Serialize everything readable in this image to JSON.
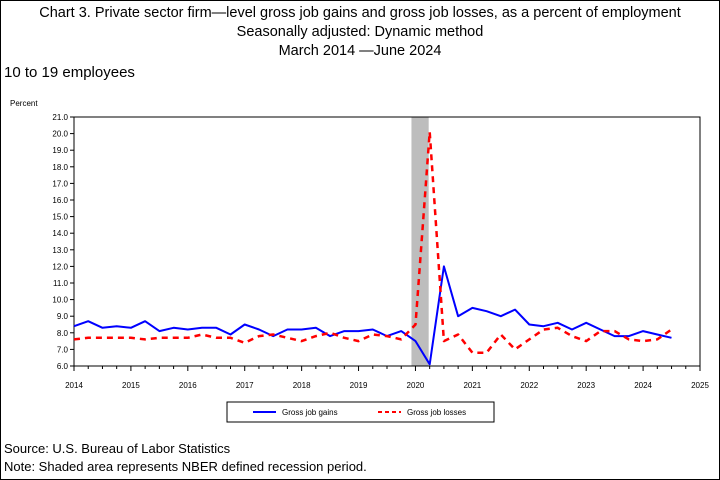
{
  "chart_title": {
    "line1": "Chart 3. Private sector firm—level gross job gains and gross job losses, as a percent of employment",
    "line2": "Seasonally adjusted: Dynamic method",
    "line3": "March 2014  —June 2024"
  },
  "subtitle": "10 to 19 employees",
  "footer": {
    "source": "Source: U.S. Bureau of Labor Statistics",
    "note": "Note: Shaded area represents NBER defined recession period."
  },
  "colors": {
    "gains": "#0000ff",
    "losses": "#ff0000",
    "recession": "#bdbdbd"
  },
  "chart_data": {
    "type": "line",
    "ylabel": "Percent",
    "xlabel": "",
    "xlim": [
      2014,
      2025
    ],
    "ylim": [
      6.0,
      21.0
    ],
    "y_ticks": [
      "6.0",
      "7.0",
      "8.0",
      "9.0",
      "10.0",
      "11.0",
      "12.0",
      "13.0",
      "14.0",
      "15.0",
      "16.0",
      "17.0",
      "18.0",
      "19.0",
      "20.0",
      "21.0"
    ],
    "x_ticks": [
      "2014",
      "2015",
      "2016",
      "2017",
      "2018",
      "2019",
      "2020",
      "2021",
      "2022",
      "2023",
      "2024",
      "2025"
    ],
    "grid": false,
    "legend_position": "bottom",
    "recession": [
      2020.0,
      2020.25
    ],
    "series": [
      {
        "name": "Gross job gains",
        "style": "solid",
        "points": [
          [
            2014.0,
            8.4
          ],
          [
            2014.25,
            8.7
          ],
          [
            2014.5,
            8.3
          ],
          [
            2014.75,
            8.4
          ],
          [
            2015.0,
            8.3
          ],
          [
            2015.25,
            8.7
          ],
          [
            2015.5,
            8.1
          ],
          [
            2015.75,
            8.3
          ],
          [
            2016.0,
            8.2
          ],
          [
            2016.25,
            8.3
          ],
          [
            2016.5,
            8.3
          ],
          [
            2016.75,
            7.9
          ],
          [
            2017.0,
            8.5
          ],
          [
            2017.25,
            8.2
          ],
          [
            2017.5,
            7.8
          ],
          [
            2017.75,
            8.2
          ],
          [
            2018.0,
            8.2
          ],
          [
            2018.25,
            8.3
          ],
          [
            2018.5,
            7.8
          ],
          [
            2018.75,
            8.1
          ],
          [
            2019.0,
            8.1
          ],
          [
            2019.25,
            8.2
          ],
          [
            2019.5,
            7.8
          ],
          [
            2019.75,
            8.1
          ],
          [
            2020.0,
            7.5
          ],
          [
            2020.25,
            6.1
          ],
          [
            2020.5,
            12.0
          ],
          [
            2020.75,
            9.0
          ],
          [
            2021.0,
            9.5
          ],
          [
            2021.25,
            9.3
          ],
          [
            2021.5,
            9.0
          ],
          [
            2021.75,
            9.4
          ],
          [
            2022.0,
            8.5
          ],
          [
            2022.25,
            8.4
          ],
          [
            2022.5,
            8.6
          ],
          [
            2022.75,
            8.2
          ],
          [
            2023.0,
            8.6
          ],
          [
            2023.25,
            8.2
          ],
          [
            2023.5,
            7.8
          ],
          [
            2023.75,
            7.8
          ],
          [
            2024.0,
            8.1
          ],
          [
            2024.25,
            7.9
          ],
          [
            2024.5,
            7.7
          ]
        ]
      },
      {
        "name": "Gross job losses",
        "style": "dashed",
        "points": [
          [
            2014.0,
            7.6
          ],
          [
            2014.25,
            7.7
          ],
          [
            2014.5,
            7.7
          ],
          [
            2014.75,
            7.7
          ],
          [
            2015.0,
            7.7
          ],
          [
            2015.25,
            7.6
          ],
          [
            2015.5,
            7.7
          ],
          [
            2015.75,
            7.7
          ],
          [
            2016.0,
            7.7
          ],
          [
            2016.25,
            7.9
          ],
          [
            2016.5,
            7.7
          ],
          [
            2016.75,
            7.7
          ],
          [
            2017.0,
            7.4
          ],
          [
            2017.25,
            7.8
          ],
          [
            2017.5,
            7.9
          ],
          [
            2017.75,
            7.7
          ],
          [
            2018.0,
            7.5
          ],
          [
            2018.25,
            7.8
          ],
          [
            2018.5,
            8.0
          ],
          [
            2018.75,
            7.7
          ],
          [
            2019.0,
            7.5
          ],
          [
            2019.25,
            7.9
          ],
          [
            2019.5,
            7.8
          ],
          [
            2019.75,
            7.6
          ],
          [
            2020.0,
            8.5
          ],
          [
            2020.25,
            20.1
          ],
          [
            2020.5,
            7.5
          ],
          [
            2020.75,
            7.9
          ],
          [
            2021.0,
            6.8
          ],
          [
            2021.25,
            6.8
          ],
          [
            2021.5,
            7.9
          ],
          [
            2021.75,
            7.0
          ],
          [
            2022.0,
            7.6
          ],
          [
            2022.25,
            8.2
          ],
          [
            2022.5,
            8.3
          ],
          [
            2022.75,
            7.8
          ],
          [
            2023.0,
            7.5
          ],
          [
            2023.25,
            8.1
          ],
          [
            2023.5,
            8.1
          ],
          [
            2023.75,
            7.6
          ],
          [
            2024.0,
            7.5
          ],
          [
            2024.25,
            7.6
          ],
          [
            2024.5,
            8.2
          ]
        ]
      }
    ]
  }
}
